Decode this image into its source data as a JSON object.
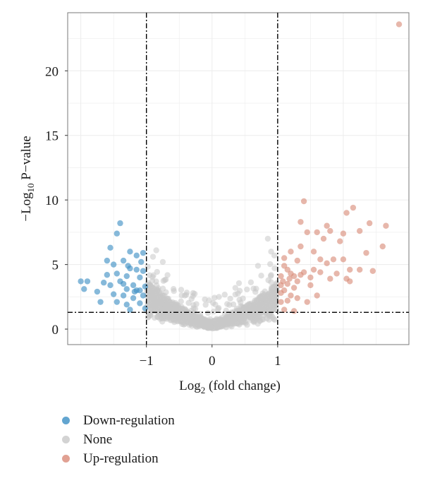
{
  "chart_data": {
    "type": "scatter",
    "xlabel": {
      "main": "Log",
      "sub": "2",
      "rest": " (fold change)"
    },
    "ylabel": {
      "main": "−Log",
      "sub": "10",
      "rest": " P−value"
    },
    "xlim": [
      -2.2,
      3.0
    ],
    "ylim": [
      -1.2,
      24.5
    ],
    "x_ticks": [
      -1,
      0,
      1
    ],
    "x_tick_labels": [
      "−1",
      "0",
      "1"
    ],
    "y_ticks": [
      0,
      5,
      10,
      15,
      20
    ],
    "y_tick_labels": [
      "0",
      "5",
      "10",
      "15",
      "20"
    ],
    "grid": true,
    "thresholds": {
      "fold_change": [
        -1,
        1
      ],
      "p_value_line": 1.3
    },
    "colors": {
      "down": "#3b8ec4",
      "none": "#c8c8c8",
      "up": "#d98a78",
      "threshold": "#000000"
    },
    "legend_placement": "bottom-left",
    "series": [
      {
        "name": "Down-regulation",
        "key": "down",
        "points": [
          [
            -2.0,
            3.7
          ],
          [
            -1.9,
            3.7
          ],
          [
            -1.95,
            3.1
          ],
          [
            -1.75,
            2.9
          ],
          [
            -1.7,
            2.1
          ],
          [
            -1.6,
            4.2
          ],
          [
            -1.6,
            5.3
          ],
          [
            -1.55,
            6.3
          ],
          [
            -1.5,
            5.0
          ],
          [
            -1.45,
            4.3
          ],
          [
            -1.4,
            3.7
          ],
          [
            -1.45,
            7.4
          ],
          [
            -1.4,
            8.2
          ],
          [
            -1.35,
            5.3
          ],
          [
            -1.3,
            4.1
          ],
          [
            -1.3,
            3.1
          ],
          [
            -1.35,
            2.6
          ],
          [
            -1.3,
            1.9
          ],
          [
            -1.25,
            6.0
          ],
          [
            -1.25,
            4.7
          ],
          [
            -1.2,
            3.4
          ],
          [
            -1.2,
            2.4
          ],
          [
            -1.15,
            5.7
          ],
          [
            -1.15,
            3.0
          ],
          [
            -1.1,
            4.0
          ],
          [
            -1.1,
            2.0
          ],
          [
            -1.05,
            5.9
          ],
          [
            -1.05,
            4.5
          ],
          [
            -1.05,
            2.6
          ],
          [
            -1.02,
            3.3
          ],
          [
            -1.02,
            1.6
          ],
          [
            -1.5,
            2.7
          ],
          [
            -1.55,
            3.4
          ],
          [
            -1.25,
            1.5
          ],
          [
            -1.15,
            4.6
          ],
          [
            -1.1,
            3.0
          ],
          [
            -1.45,
            2.1
          ],
          [
            -1.65,
            3.6
          ],
          [
            -1.35,
            3.5
          ],
          [
            -1.08,
            5.2
          ],
          [
            -1.18,
            2.9
          ],
          [
            -1.28,
            4.9
          ]
        ]
      },
      {
        "name": "None",
        "key": "none",
        "generator": "volcano-none"
      },
      {
        "name": "Up-regulation",
        "key": "up",
        "points": [
          [
            1.05,
            2.1
          ],
          [
            1.05,
            3.4
          ],
          [
            1.05,
            4.1
          ],
          [
            1.1,
            5.5
          ],
          [
            1.1,
            3.0
          ],
          [
            1.1,
            1.5
          ],
          [
            1.15,
            4.6
          ],
          [
            1.15,
            3.5
          ],
          [
            1.2,
            6.0
          ],
          [
            1.2,
            2.6
          ],
          [
            1.25,
            4.1
          ],
          [
            1.25,
            1.4
          ],
          [
            1.3,
            5.3
          ],
          [
            1.3,
            3.7
          ],
          [
            1.35,
            8.3
          ],
          [
            1.35,
            4.2
          ],
          [
            1.35,
            6.4
          ],
          [
            1.4,
            9.9
          ],
          [
            1.4,
            4.4
          ],
          [
            1.45,
            7.5
          ],
          [
            1.5,
            3.4
          ],
          [
            1.55,
            6.0
          ],
          [
            1.55,
            4.6
          ],
          [
            1.6,
            7.5
          ],
          [
            1.6,
            2.6
          ],
          [
            1.65,
            5.4
          ],
          [
            1.65,
            4.4
          ],
          [
            1.7,
            7.0
          ],
          [
            1.75,
            8.0
          ],
          [
            1.75,
            5.1
          ],
          [
            1.8,
            3.9
          ],
          [
            1.8,
            7.6
          ],
          [
            1.85,
            5.4
          ],
          [
            1.9,
            4.3
          ],
          [
            1.95,
            6.8
          ],
          [
            2.0,
            7.4
          ],
          [
            2.0,
            5.4
          ],
          [
            2.05,
            9.0
          ],
          [
            2.05,
            3.9
          ],
          [
            2.1,
            4.6
          ],
          [
            2.1,
            3.7
          ],
          [
            2.15,
            9.4
          ],
          [
            2.25,
            7.6
          ],
          [
            2.25,
            4.6
          ],
          [
            2.4,
            8.2
          ],
          [
            2.35,
            5.9
          ],
          [
            2.45,
            4.5
          ],
          [
            2.6,
            6.4
          ],
          [
            2.65,
            8.0
          ],
          [
            2.85,
            23.6
          ],
          [
            1.05,
            2.8
          ],
          [
            1.15,
            2.2
          ],
          [
            1.25,
            3.2
          ],
          [
            1.3,
            2.4
          ],
          [
            1.2,
            4.3
          ],
          [
            1.1,
            4.9
          ],
          [
            1.45,
            2.1
          ],
          [
            1.5,
            4.0
          ],
          [
            1.08,
            3.7
          ],
          [
            1.18,
            3.9
          ]
        ]
      }
    ]
  }
}
